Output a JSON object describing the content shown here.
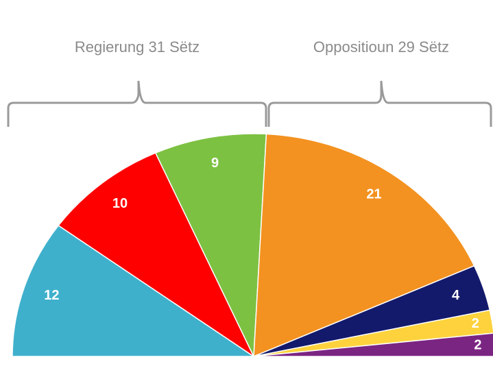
{
  "chart_data": {
    "type": "pie",
    "values": [
      12,
      10,
      9,
      21,
      4,
      2,
      2
    ],
    "colors": [
      "#3fb0cc",
      "#ff0000",
      "#7dc142",
      "#f39220",
      "#141a6b",
      "#fdd23c",
      "#7b2583"
    ],
    "annotations": [
      "Regierung 31 Sëtz",
      "Oppositioun 29 Sëtz"
    ]
  }
}
